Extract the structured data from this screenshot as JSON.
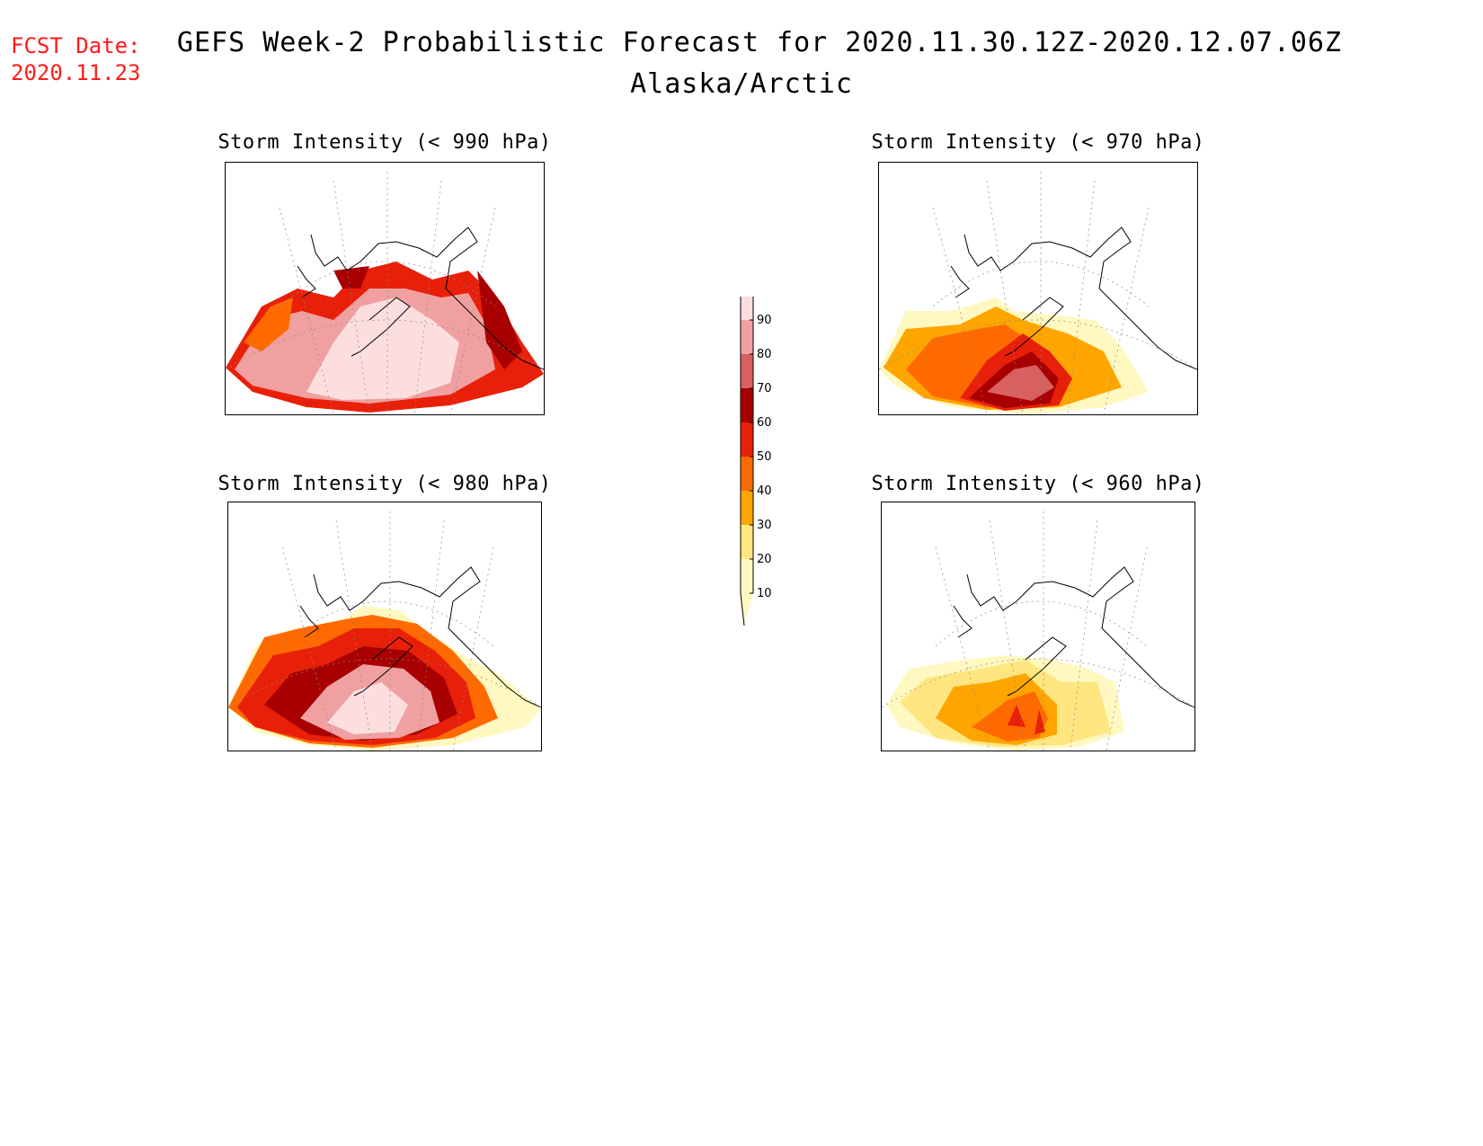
{
  "header": {
    "fcst_label": "FCST Date:",
    "fcst_date": "2020.11.23",
    "title": "GEFS Week-2 Probabilistic Forecast for 2020.11.30.12Z-2020.12.07.06Z",
    "region": "Alaska/Arctic"
  },
  "panels": [
    {
      "title": "Storm Intensity (< 990 hPa)"
    },
    {
      "title": "Storm Intensity (< 970 hPa)"
    },
    {
      "title": "Storm Intensity (< 980 hPa)"
    },
    {
      "title": "Storm Intensity (< 960 hPa)"
    }
  ],
  "colorbar": {
    "levels": [
      10,
      20,
      30,
      40,
      50,
      60,
      70,
      80,
      90
    ],
    "colors": [
      "#fff8c0",
      "#ffe680",
      "#ffa500",
      "#ff6a00",
      "#e8200a",
      "#a80000",
      "#d86060",
      "#f0a0a0",
      "#fcdede"
    ]
  }
}
